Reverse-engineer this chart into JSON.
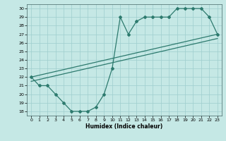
{
  "line1_x": [
    0,
    1,
    2,
    3,
    4,
    5,
    6,
    7,
    8,
    9,
    10,
    11,
    12,
    13,
    14,
    15,
    16,
    17,
    18,
    19,
    20,
    21,
    22,
    23
  ],
  "line1_y": [
    22,
    21,
    21,
    20,
    19,
    18,
    18,
    18,
    18.5,
    20,
    23,
    29,
    27,
    28.5,
    29,
    29,
    29,
    29,
    30,
    30,
    30,
    30,
    29,
    27
  ],
  "line2_x": [
    0,
    23
  ],
  "line2_y": [
    22.0,
    27.0
  ],
  "line3_x": [
    0,
    23
  ],
  "line3_y": [
    21.5,
    26.5
  ],
  "line_color": "#2d7a6e",
  "bg_color": "#c5e8e5",
  "grid_color": "#9ecece",
  "xlabel": "Humidex (Indice chaleur)",
  "xlim": [
    -0.5,
    23.5
  ],
  "ylim": [
    17.5,
    30.5
  ],
  "yticks": [
    18,
    19,
    20,
    21,
    22,
    23,
    24,
    25,
    26,
    27,
    28,
    29,
    30
  ],
  "xticks": [
    0,
    1,
    2,
    3,
    4,
    5,
    6,
    7,
    8,
    9,
    10,
    11,
    12,
    13,
    14,
    15,
    16,
    17,
    18,
    19,
    20,
    21,
    22,
    23
  ],
  "marker": "D",
  "markersize": 2.0,
  "linewidth": 0.9
}
